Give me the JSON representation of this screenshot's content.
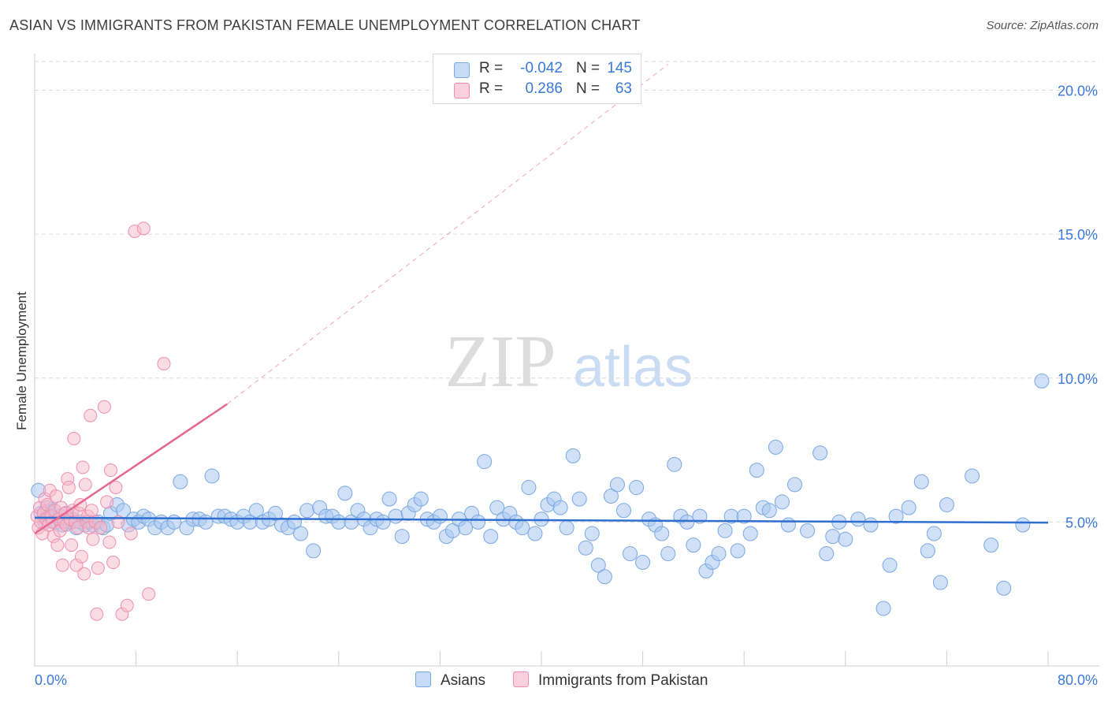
{
  "header": {
    "title": "ASIAN VS IMMIGRANTS FROM PAKISTAN FEMALE UNEMPLOYMENT CORRELATION CHART",
    "source": "Source: ZipAtlas.com"
  },
  "watermark": {
    "zip": "ZIP",
    "atlas": "atlas"
  },
  "legend": {
    "rows": [
      {
        "r_label": "R =",
        "r_value": "-0.042",
        "n_label": "N =",
        "n_value": "145"
      },
      {
        "r_label": "R =",
        "r_value": "0.286",
        "n_label": "N =",
        "n_value": "63"
      }
    ]
  },
  "bottom_legend": {
    "asians": "Asians",
    "pakistan": "Immigrants from Pakistan"
  },
  "colors": {
    "asian_fill": "#a9c8f0",
    "asian_stroke": "#7aa7e0",
    "asian_line": "#2f6fcf",
    "pak_fill": "#f6b9cc",
    "pak_stroke": "#ee8fad",
    "pak_line": "#e4678f",
    "tick_text": "#3b78d8",
    "grid": "#d9d9d9"
  },
  "chart_data": {
    "type": "scatter",
    "title": "ASIAN VS IMMIGRANTS FROM PAKISTAN FEMALE UNEMPLOYMENT CORRELATION CHART",
    "xlabel": "",
    "ylabel": "Female Unemployment",
    "xlim": [
      0,
      80
    ],
    "ylim": [
      0,
      21
    ],
    "x_tick_labels": [
      "0.0%",
      "80.0%"
    ],
    "y_ticks": [
      5,
      10,
      15,
      20
    ],
    "y_tick_labels": [
      "5.0%",
      "10.0%",
      "15.0%",
      "20.0%"
    ],
    "grid": true,
    "legend_position": "top-center",
    "series": [
      {
        "name": "Asians",
        "r": -0.042,
        "n": 145,
        "trend": {
          "x0": 0,
          "y0": 5.15,
          "x1": 80,
          "y1": 4.98,
          "style": "solid"
        },
        "points": [
          [
            0.3,
            6.1
          ],
          [
            0.5,
            5.3
          ],
          [
            0.8,
            5.0
          ],
          [
            1.0,
            5.5
          ],
          [
            1.2,
            5.2
          ],
          [
            1.5,
            5.4
          ],
          [
            1.7,
            5.0
          ],
          [
            2.0,
            5.2
          ],
          [
            2.2,
            4.9
          ],
          [
            2.5,
            5.3
          ],
          [
            2.8,
            5.0
          ],
          [
            3.0,
            5.1
          ],
          [
            3.3,
            4.8
          ],
          [
            3.6,
            5.0
          ],
          [
            4.0,
            4.9
          ],
          [
            4.3,
            5.0
          ],
          [
            4.6,
            4.9
          ],
          [
            5.0,
            5.0
          ],
          [
            5.4,
            4.8
          ],
          [
            5.7,
            4.9
          ],
          [
            6.0,
            5.3
          ],
          [
            6.5,
            5.6
          ],
          [
            7.0,
            5.4
          ],
          [
            7.4,
            4.9
          ],
          [
            7.8,
            5.1
          ],
          [
            8.2,
            5.0
          ],
          [
            8.6,
            5.2
          ],
          [
            9.0,
            5.1
          ],
          [
            9.5,
            4.8
          ],
          [
            10.0,
            5.0
          ],
          [
            10.5,
            4.8
          ],
          [
            11.0,
            5.0
          ],
          [
            11.5,
            6.4
          ],
          [
            12.0,
            4.8
          ],
          [
            12.5,
            5.1
          ],
          [
            13.0,
            5.1
          ],
          [
            13.5,
            5.0
          ],
          [
            14.0,
            6.6
          ],
          [
            14.5,
            5.2
          ],
          [
            15.0,
            5.2
          ],
          [
            15.5,
            5.1
          ],
          [
            16.0,
            5.0
          ],
          [
            16.5,
            5.2
          ],
          [
            17.0,
            5.0
          ],
          [
            17.5,
            5.4
          ],
          [
            18.0,
            5.0
          ],
          [
            18.5,
            5.1
          ],
          [
            19.0,
            5.3
          ],
          [
            19.5,
            4.9
          ],
          [
            20.0,
            4.8
          ],
          [
            20.5,
            5.0
          ],
          [
            21.0,
            4.6
          ],
          [
            21.5,
            5.4
          ],
          [
            22.0,
            4.0
          ],
          [
            22.5,
            5.5
          ],
          [
            23.0,
            5.2
          ],
          [
            23.5,
            5.2
          ],
          [
            24.0,
            5.0
          ],
          [
            24.5,
            6.0
          ],
          [
            25.0,
            5.0
          ],
          [
            25.5,
            5.4
          ],
          [
            26.0,
            5.1
          ],
          [
            26.5,
            4.8
          ],
          [
            27.0,
            5.1
          ],
          [
            27.5,
            5.0
          ],
          [
            28.0,
            5.8
          ],
          [
            28.5,
            5.2
          ],
          [
            29.0,
            4.5
          ],
          [
            29.5,
            5.3
          ],
          [
            30.0,
            5.6
          ],
          [
            30.5,
            5.8
          ],
          [
            31.0,
            5.1
          ],
          [
            31.5,
            5.0
          ],
          [
            32.0,
            5.2
          ],
          [
            32.5,
            4.5
          ],
          [
            33.0,
            4.7
          ],
          [
            33.5,
            5.1
          ],
          [
            34.0,
            4.8
          ],
          [
            34.5,
            5.3
          ],
          [
            35.0,
            5.0
          ],
          [
            35.5,
            7.1
          ],
          [
            36.0,
            4.5
          ],
          [
            36.5,
            5.5
          ],
          [
            37.0,
            5.1
          ],
          [
            37.5,
            5.3
          ],
          [
            38.0,
            5.0
          ],
          [
            38.5,
            4.8
          ],
          [
            39.0,
            6.2
          ],
          [
            39.5,
            4.6
          ],
          [
            40.0,
            5.1
          ],
          [
            40.5,
            5.6
          ],
          [
            41.0,
            5.8
          ],
          [
            41.5,
            5.5
          ],
          [
            42.0,
            4.8
          ],
          [
            42.5,
            7.3
          ],
          [
            43.0,
            5.8
          ],
          [
            43.5,
            4.1
          ],
          [
            44.0,
            4.6
          ],
          [
            44.5,
            3.5
          ],
          [
            45.0,
            3.1
          ],
          [
            45.5,
            5.9
          ],
          [
            46.0,
            6.3
          ],
          [
            46.5,
            5.4
          ],
          [
            47.0,
            3.9
          ],
          [
            47.5,
            6.2
          ],
          [
            48.0,
            3.6
          ],
          [
            48.5,
            5.1
          ],
          [
            49.0,
            4.9
          ],
          [
            49.5,
            4.6
          ],
          [
            50.0,
            3.9
          ],
          [
            50.5,
            7.0
          ],
          [
            51.0,
            5.2
          ],
          [
            51.5,
            5.0
          ],
          [
            52.0,
            4.2
          ],
          [
            52.5,
            5.2
          ],
          [
            53.0,
            3.3
          ],
          [
            53.5,
            3.6
          ],
          [
            54.0,
            3.9
          ],
          [
            54.5,
            4.7
          ],
          [
            55.0,
            5.2
          ],
          [
            55.5,
            4.0
          ],
          [
            56.0,
            5.2
          ],
          [
            56.5,
            4.6
          ],
          [
            57.0,
            6.8
          ],
          [
            57.5,
            5.5
          ],
          [
            58.0,
            5.4
          ],
          [
            58.5,
            7.6
          ],
          [
            59.0,
            5.7
          ],
          [
            59.5,
            4.9
          ],
          [
            60.0,
            6.3
          ],
          [
            61.0,
            4.7
          ],
          [
            62.0,
            7.4
          ],
          [
            62.5,
            3.9
          ],
          [
            63.0,
            4.5
          ],
          [
            63.5,
            5.0
          ],
          [
            64.0,
            4.4
          ],
          [
            65.0,
            5.1
          ],
          [
            66.0,
            4.9
          ],
          [
            67.0,
            2.0
          ],
          [
            67.5,
            3.5
          ],
          [
            68.0,
            5.2
          ],
          [
            69.0,
            5.5
          ],
          [
            70.0,
            6.4
          ],
          [
            70.5,
            4.0
          ],
          [
            71.0,
            4.6
          ],
          [
            71.5,
            2.9
          ],
          [
            72.0,
            5.6
          ],
          [
            74.0,
            6.6
          ],
          [
            75.5,
            4.2
          ],
          [
            76.5,
            2.7
          ],
          [
            78.0,
            4.9
          ],
          [
            79.5,
            9.9
          ]
        ]
      },
      {
        "name": "Immigrants from Pakistan",
        "r": 0.286,
        "n": 63,
        "trend": {
          "x0": 0,
          "y0": 4.6,
          "x1": 15.2,
          "y1": 9.1,
          "style": "solid",
          "dashed_to": [
            50,
            20.9
          ]
        },
        "points": [
          [
            0.2,
            5.2
          ],
          [
            0.3,
            4.8
          ],
          [
            0.4,
            5.5
          ],
          [
            0.5,
            5.0
          ],
          [
            0.6,
            4.6
          ],
          [
            0.7,
            5.3
          ],
          [
            0.8,
            5.8
          ],
          [
            0.9,
            5.1
          ],
          [
            1.0,
            5.6
          ],
          [
            1.1,
            4.9
          ],
          [
            1.2,
            6.1
          ],
          [
            1.3,
            5.2
          ],
          [
            1.4,
            5.0
          ],
          [
            1.5,
            4.5
          ],
          [
            1.6,
            5.4
          ],
          [
            1.7,
            5.9
          ],
          [
            1.8,
            4.2
          ],
          [
            1.9,
            5.1
          ],
          [
            2.0,
            4.7
          ],
          [
            2.1,
            5.5
          ],
          [
            2.2,
            3.5
          ],
          [
            2.3,
            5.0
          ],
          [
            2.4,
            5.3
          ],
          [
            2.5,
            4.9
          ],
          [
            2.6,
            6.5
          ],
          [
            2.7,
            6.2
          ],
          [
            2.8,
            5.1
          ],
          [
            2.9,
            4.2
          ],
          [
            3.0,
            5.4
          ],
          [
            3.1,
            7.9
          ],
          [
            3.2,
            5.0
          ],
          [
            3.3,
            3.5
          ],
          [
            3.4,
            4.8
          ],
          [
            3.5,
            5.3
          ],
          [
            3.6,
            5.6
          ],
          [
            3.7,
            3.8
          ],
          [
            3.8,
            6.9
          ],
          [
            3.9,
            3.2
          ],
          [
            4.0,
            6.3
          ],
          [
            4.1,
            5.0
          ],
          [
            4.2,
            5.2
          ],
          [
            4.3,
            4.8
          ],
          [
            4.4,
            8.7
          ],
          [
            4.5,
            5.4
          ],
          [
            4.6,
            4.4
          ],
          [
            4.8,
            5.0
          ],
          [
            4.9,
            1.8
          ],
          [
            5.0,
            3.4
          ],
          [
            5.2,
            4.8
          ],
          [
            5.5,
            9.0
          ],
          [
            5.7,
            5.7
          ],
          [
            5.9,
            4.3
          ],
          [
            6.0,
            6.8
          ],
          [
            6.2,
            3.6
          ],
          [
            6.4,
            6.2
          ],
          [
            6.6,
            5.0
          ],
          [
            6.9,
            1.8
          ],
          [
            7.3,
            2.1
          ],
          [
            7.6,
            4.6
          ],
          [
            7.9,
            15.1
          ],
          [
            8.6,
            15.2
          ],
          [
            9.0,
            2.5
          ],
          [
            10.2,
            10.5
          ]
        ]
      }
    ]
  }
}
